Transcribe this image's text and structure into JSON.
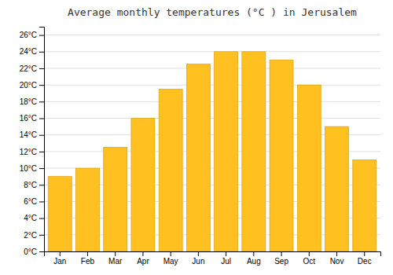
{
  "chart_data": {
    "type": "bar",
    "title": "Average monthly temperatures (°C ) in Jerusalem",
    "categories": [
      "Jan",
      "Feb",
      "Mar",
      "Apr",
      "May",
      "Jun",
      "Jul",
      "Aug",
      "Sep",
      "Oct",
      "Nov",
      "Dec"
    ],
    "values": [
      9,
      10,
      12.5,
      16,
      19.5,
      22.5,
      24,
      24,
      23,
      20,
      15,
      11
    ],
    "color": "#FFC020",
    "ylim": [
      0,
      27
    ],
    "yticks": [
      {
        "value": 0,
        "label": "0°C"
      },
      {
        "value": 2,
        "label": "2°C"
      },
      {
        "value": 4,
        "label": "4°C"
      },
      {
        "value": 6,
        "label": "6°C"
      },
      {
        "value": 8,
        "label": "8°C"
      },
      {
        "value": 10,
        "label": "10°C"
      },
      {
        "value": 12,
        "label": "12°C"
      },
      {
        "value": 14,
        "label": "14°C"
      },
      {
        "value": 16,
        "label": "16°C"
      },
      {
        "value": 18,
        "label": "18°C"
      },
      {
        "value": 20,
        "label": "20°C"
      },
      {
        "value": 22,
        "label": "22°C"
      },
      {
        "value": 24,
        "label": "24°C"
      },
      {
        "value": 26,
        "label": "26°C"
      }
    ],
    "grid": true
  }
}
